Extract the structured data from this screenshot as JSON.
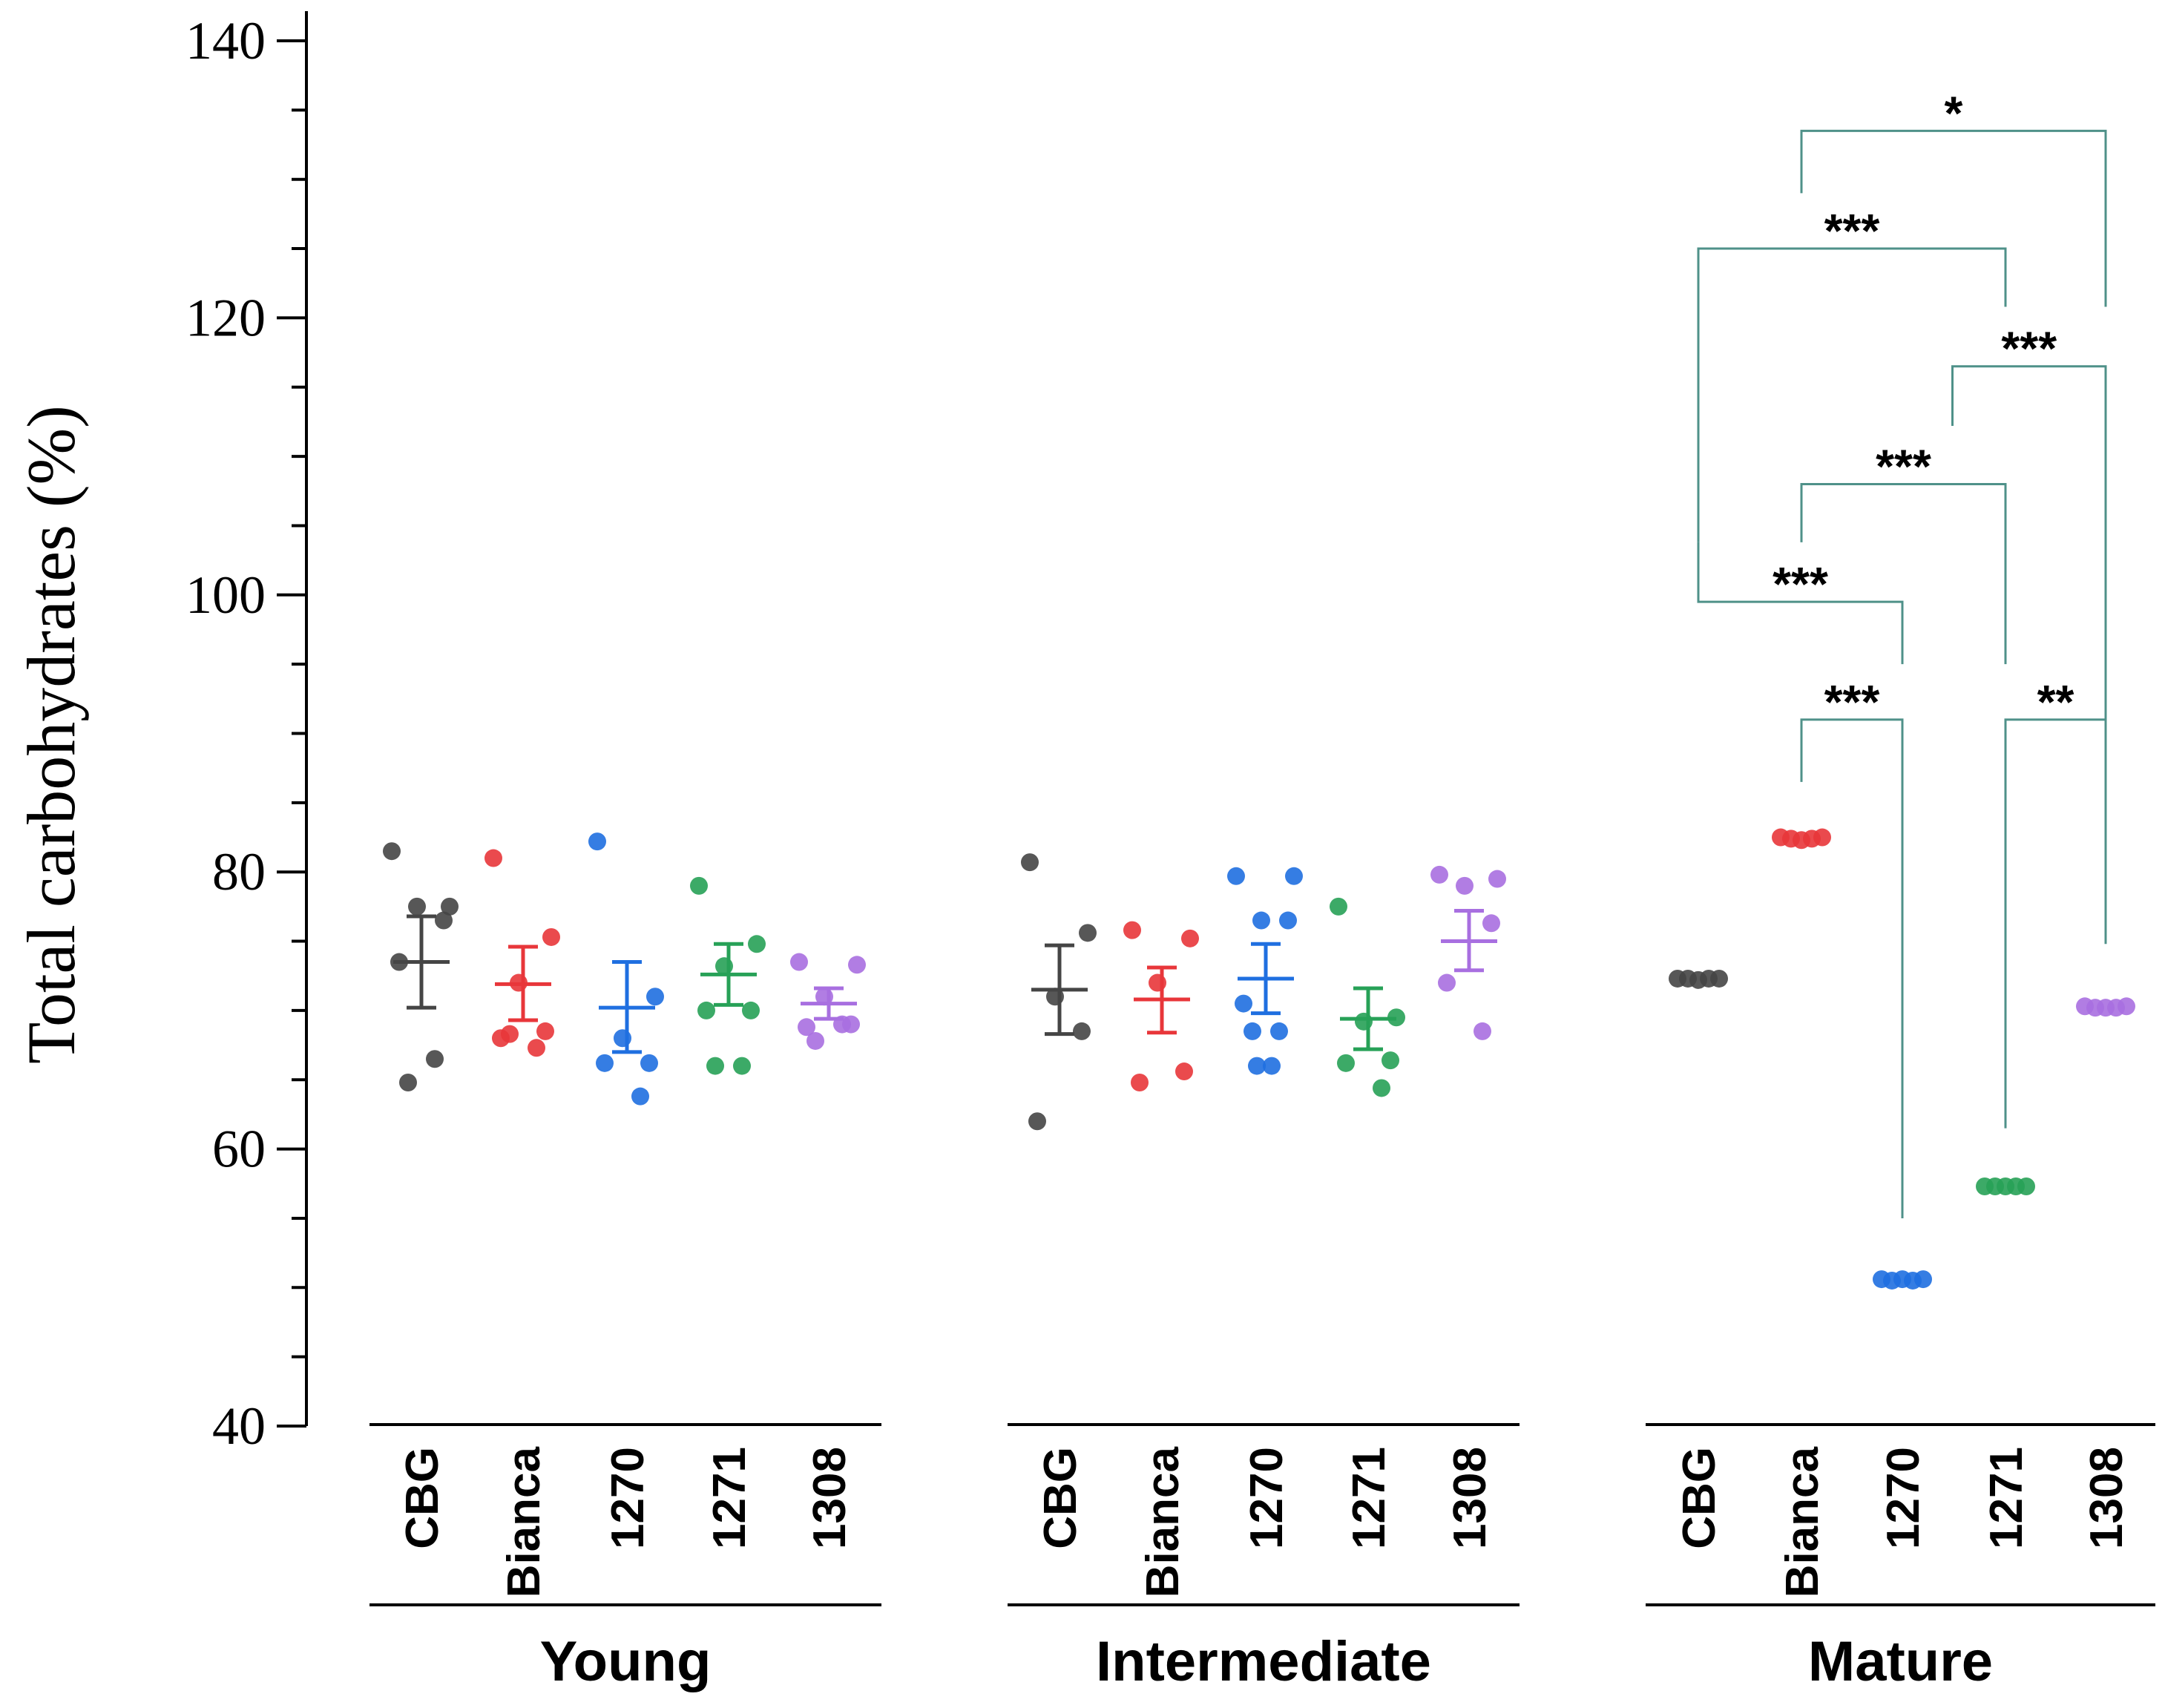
{
  "chart_data": {
    "type": "scatter",
    "ylabel": "Total carbohydrates (%)",
    "ylim": [
      40,
      140
    ],
    "yticks": [
      40,
      60,
      80,
      100,
      120,
      140
    ],
    "ytick_labels": [
      "40",
      "60",
      "80",
      "100",
      "120",
      "140"
    ],
    "colors": {
      "CBG": "#454545",
      "Bianca": "#e8363a",
      "1270": "#1f6fe0",
      "1271": "#27a157",
      "1308": "#a86fe0",
      "bracket": "#4f9189"
    },
    "groups": [
      {
        "name": "Young",
        "series": [
          {
            "category": "CBG",
            "points": [
              81.5,
              77.5,
              77.5,
              76.5,
              73.5,
              66.5,
              64.8
            ],
            "mean": 73.5,
            "err_low": 70.2,
            "err_high": 76.8
          },
          {
            "category": "Bianca",
            "points": [
              81.0,
              75.3,
              72.0,
              68.5,
              68.0,
              67.3,
              68.3
            ],
            "mean": 71.9,
            "err_low": 69.3,
            "err_high": 74.6
          },
          {
            "category": "1270",
            "points": [
              82.2,
              71.0,
              68.0,
              66.2,
              66.2,
              63.8
            ],
            "mean": 70.2,
            "err_low": 67.0,
            "err_high": 73.5
          },
          {
            "category": "1271",
            "points": [
              79.0,
              74.8,
              73.2,
              70.0,
              70.0,
              66.0,
              66.0
            ],
            "mean": 72.6,
            "err_low": 70.4,
            "err_high": 74.8
          },
          {
            "category": "1308",
            "points": [
              73.5,
              73.3,
              71.0,
              69.0,
              68.8,
              69.0,
              67.8
            ],
            "mean": 70.5,
            "err_low": 69.4,
            "err_high": 71.6
          }
        ]
      },
      {
        "name": "Intermediate",
        "series": [
          {
            "category": "CBG",
            "points": [
              80.7,
              75.6,
              71.0,
              68.5,
              62.0
            ],
            "mean": 71.5,
            "err_low": 68.3,
            "err_high": 74.7
          },
          {
            "category": "Bianca",
            "points": [
              75.8,
              75.2,
              72.0,
              65.6,
              64.8
            ],
            "mean": 70.8,
            "err_low": 68.4,
            "err_high": 73.1
          },
          {
            "category": "1270",
            "points": [
              79.7,
              79.7,
              76.5,
              76.5,
              70.5,
              68.5,
              68.5,
              66.0,
              66.0
            ],
            "mean": 72.3,
            "err_low": 69.8,
            "err_high": 74.8
          },
          {
            "category": "1271",
            "points": [
              77.5,
              69.5,
              69.2,
              66.4,
              66.2,
              64.4
            ],
            "mean": 69.4,
            "err_low": 67.2,
            "err_high": 71.6
          },
          {
            "category": "1308",
            "points": [
              79.8,
              79.5,
              79.0,
              76.3,
              72.0,
              68.5
            ],
            "mean": 75.0,
            "err_low": 72.9,
            "err_high": 77.2
          }
        ]
      },
      {
        "name": "Mature",
        "series": [
          {
            "category": "CBG",
            "points": [
              72.3,
              72.3,
              72.2,
              72.3,
              72.3
            ],
            "mean": 72.3,
            "err_low": 72.3,
            "err_high": 72.3
          },
          {
            "category": "Bianca",
            "points": [
              82.5,
              82.4,
              82.3,
              82.4,
              82.5
            ],
            "mean": 82.4,
            "err_low": 82.4,
            "err_high": 82.4
          },
          {
            "category": "1270",
            "points": [
              50.6,
              50.5,
              50.6,
              50.5,
              50.6
            ],
            "mean": 50.6,
            "err_low": 50.6,
            "err_high": 50.6
          },
          {
            "category": "1271",
            "points": [
              57.3,
              57.3,
              57.3,
              57.3,
              57.3
            ],
            "mean": 57.3,
            "err_low": 57.3,
            "err_high": 57.3
          },
          {
            "category": "1308",
            "points": [
              70.3,
              70.2,
              70.2,
              70.2,
              70.3
            ],
            "mean": 70.2,
            "err_low": 70.2,
            "err_high": 70.2
          }
        ]
      }
    ],
    "significance": [
      {
        "from": "Bianca",
        "to": "1308",
        "label": "*",
        "level": 133.5,
        "from_end": 129.0,
        "to_end": 120.8
      },
      {
        "from": "CBG",
        "to": "1271",
        "label": "***",
        "level": 125.0,
        "from_end": 103.8,
        "to_end": 120.8
      },
      {
        "from": "Bianca",
        "to": "1308",
        "label": "***",
        "level": 116.5,
        "from_end": 112.2,
        "to_end": 75.0,
        "from_category": "1270.5"
      },
      {
        "from": "Bianca",
        "to": "1271",
        "label": "***",
        "level": 108.0,
        "from_end": 103.8,
        "to_end": 95.0
      },
      {
        "from": "CBG",
        "to": "1270",
        "label": "***",
        "level": 99.5,
        "from_end": 103.8,
        "to_end": 95.0
      },
      {
        "from": "Bianca",
        "to": "1270",
        "label": "***",
        "level": 91.0,
        "from_end": 86.5,
        "to_end": 55.0
      },
      {
        "from": "1271",
        "to": "1308",
        "label": "**",
        "level": 91.0,
        "from_end": 61.5,
        "to_end": 74.8
      }
    ]
  }
}
